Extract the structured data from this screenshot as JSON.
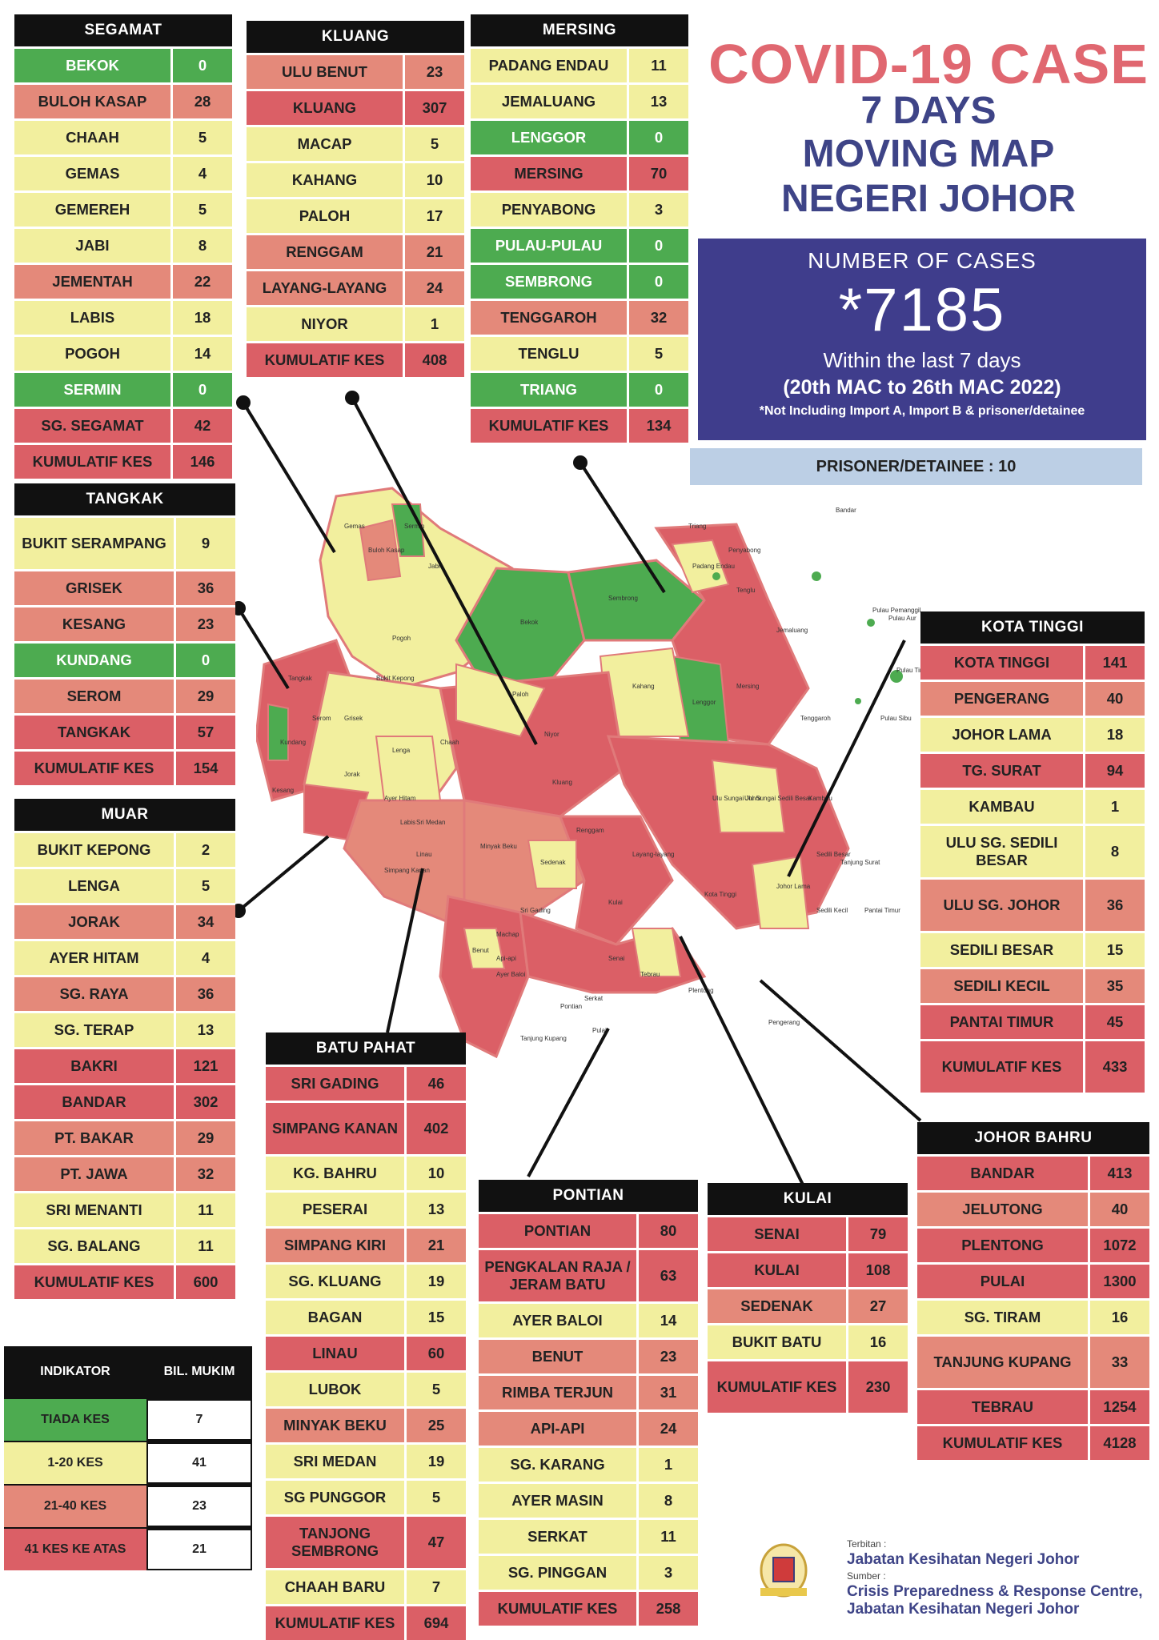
{
  "title": {
    "line1": "COVID-19 CASE",
    "line2": "7 DAYS",
    "line3": "MOVING MAP",
    "line4": "NEGERI JOHOR"
  },
  "summary": {
    "label": "NUMBER OF CASES",
    "total": "*7185",
    "period": "Within the last 7 days",
    "range": "(20th MAC to 26th MAC 2022)",
    "note": "*Not Including Import A, Import B & prisoner/detainee"
  },
  "prisoner": "PRISONER/DETAINEE : 10",
  "colors": {
    "tiada": "#4dab50",
    "low": "#f2ef9e",
    "mid": "#e4897a",
    "high": "#db5f66"
  },
  "districts": [
    {
      "id": "segamat",
      "name": "SEGAMAT",
      "rows": [
        {
          "n": "BEKOK",
          "v": "0",
          "c": 0
        },
        {
          "n": "BULOH KASAP",
          "v": "28",
          "c": 2
        },
        {
          "n": "CHAAH",
          "v": "5",
          "c": 1
        },
        {
          "n": "GEMAS",
          "v": "4",
          "c": 1
        },
        {
          "n": "GEMEREH",
          "v": "5",
          "c": 1
        },
        {
          "n": "JABI",
          "v": "8",
          "c": 1
        },
        {
          "n": "JEMENTAH",
          "v": "22",
          "c": 2
        },
        {
          "n": "LABIS",
          "v": "18",
          "c": 1
        },
        {
          "n": "POGOH",
          "v": "14",
          "c": 1
        },
        {
          "n": "SERMIN",
          "v": "0",
          "c": 0
        },
        {
          "n": "SG. SEGAMAT",
          "v": "42",
          "c": 3
        },
        {
          "n": "KUMULATIF KES",
          "v": "146",
          "c": 3
        }
      ]
    },
    {
      "id": "kluang",
      "name": "KLUANG",
      "rows": [
        {
          "n": "ULU BENUT",
          "v": "23",
          "c": 2
        },
        {
          "n": "KLUANG",
          "v": "307",
          "c": 3
        },
        {
          "n": "MACAP",
          "v": "5",
          "c": 1
        },
        {
          "n": "KAHANG",
          "v": "10",
          "c": 1
        },
        {
          "n": "PALOH",
          "v": "17",
          "c": 1
        },
        {
          "n": "RENGGAM",
          "v": "21",
          "c": 2
        },
        {
          "n": "LAYANG-LAYANG",
          "v": "24",
          "c": 2
        },
        {
          "n": "NIYOR",
          "v": "1",
          "c": 1
        },
        {
          "n": "KUMULATIF KES",
          "v": "408",
          "c": 3
        }
      ]
    },
    {
      "id": "mersing",
      "name": "MERSING",
      "rows": [
        {
          "n": "PADANG ENDAU",
          "v": "11",
          "c": 1
        },
        {
          "n": "JEMALUANG",
          "v": "13",
          "c": 1
        },
        {
          "n": "LENGGOR",
          "v": "0",
          "c": 0
        },
        {
          "n": "MERSING",
          "v": "70",
          "c": 3
        },
        {
          "n": "PENYABONG",
          "v": "3",
          "c": 1
        },
        {
          "n": "PULAU-PULAU",
          "v": "0",
          "c": 0
        },
        {
          "n": "SEMBRONG",
          "v": "0",
          "c": 0
        },
        {
          "n": "TENGGAROH",
          "v": "32",
          "c": 2
        },
        {
          "n": "TENGLU",
          "v": "5",
          "c": 1
        },
        {
          "n": "TRIANG",
          "v": "0",
          "c": 0
        },
        {
          "n": "KUMULATIF KES",
          "v": "134",
          "c": 3
        }
      ]
    },
    {
      "id": "tangkak",
      "name": "TANGKAK",
      "rows": [
        {
          "n": "BUKIT SERAMPANG",
          "v": "9",
          "c": 1,
          "tall": true
        },
        {
          "n": "GRISEK",
          "v": "36",
          "c": 2
        },
        {
          "n": "KESANG",
          "v": "23",
          "c": 2
        },
        {
          "n": "KUNDANG",
          "v": "0",
          "c": 0
        },
        {
          "n": "SEROM",
          "v": "29",
          "c": 2
        },
        {
          "n": "TANGKAK",
          "v": "57",
          "c": 3
        },
        {
          "n": "KUMULATIF KES",
          "v": "154",
          "c": 3
        }
      ]
    },
    {
      "id": "muar",
      "name": "MUAR",
      "rows": [
        {
          "n": "BUKIT KEPONG",
          "v": "2",
          "c": 1
        },
        {
          "n": "LENGA",
          "v": "5",
          "c": 1
        },
        {
          "n": "JORAK",
          "v": "34",
          "c": 2
        },
        {
          "n": "AYER HITAM",
          "v": "4",
          "c": 1
        },
        {
          "n": "SG. RAYA",
          "v": "36",
          "c": 2
        },
        {
          "n": "SG. TERAP",
          "v": "13",
          "c": 1
        },
        {
          "n": "BAKRI",
          "v": "121",
          "c": 3
        },
        {
          "n": "BANDAR",
          "v": "302",
          "c": 3
        },
        {
          "n": "PT. BAKAR",
          "v": "29",
          "c": 2
        },
        {
          "n": "PT. JAWA",
          "v": "32",
          "c": 2
        },
        {
          "n": "SRI MENANTI",
          "v": "11",
          "c": 1
        },
        {
          "n": "SG. BALANG",
          "v": "11",
          "c": 1
        },
        {
          "n": "KUMULATIF KES",
          "v": "600",
          "c": 3
        }
      ]
    },
    {
      "id": "batupahat",
      "name": "BATU PAHAT",
      "rows": [
        {
          "n": "SRI GADING",
          "v": "46",
          "c": 3
        },
        {
          "n": "SIMPANG KANAN",
          "v": "402",
          "c": 3,
          "tall": true
        },
        {
          "n": "KG. BAHRU",
          "v": "10",
          "c": 1
        },
        {
          "n": "PESERAI",
          "v": "13",
          "c": 1
        },
        {
          "n": "SIMPANG KIRI",
          "v": "21",
          "c": 2
        },
        {
          "n": "SG. KLUANG",
          "v": "19",
          "c": 1
        },
        {
          "n": "BAGAN",
          "v": "15",
          "c": 1
        },
        {
          "n": "LINAU",
          "v": "60",
          "c": 3
        },
        {
          "n": "LUBOK",
          "v": "5",
          "c": 1
        },
        {
          "n": "MINYAK BEKU",
          "v": "25",
          "c": 2
        },
        {
          "n": "SRI MEDAN",
          "v": "19",
          "c": 1
        },
        {
          "n": "SG PUNGGOR",
          "v": "5",
          "c": 1
        },
        {
          "n": "TANJONG SEMBRONG",
          "v": "47",
          "c": 3,
          "tall": true
        },
        {
          "n": "CHAAH BARU",
          "v": "7",
          "c": 1
        },
        {
          "n": "KUMULATIF KES",
          "v": "694",
          "c": 3
        }
      ]
    },
    {
      "id": "pontian",
      "name": "PONTIAN",
      "rows": [
        {
          "n": "PONTIAN",
          "v": "80",
          "c": 3
        },
        {
          "n": "PENGKALAN RAJA / JERAM BATU",
          "v": "63",
          "c": 3,
          "tall": true
        },
        {
          "n": "AYER BALOI",
          "v": "14",
          "c": 1
        },
        {
          "n": "BENUT",
          "v": "23",
          "c": 2
        },
        {
          "n": "RIMBA TERJUN",
          "v": "31",
          "c": 2
        },
        {
          "n": "API-API",
          "v": "24",
          "c": 2
        },
        {
          "n": "SG. KARANG",
          "v": "1",
          "c": 1
        },
        {
          "n": "AYER MASIN",
          "v": "8",
          "c": 1
        },
        {
          "n": "SERKAT",
          "v": "11",
          "c": 1
        },
        {
          "n": "SG. PINGGAN",
          "v": "3",
          "c": 1
        },
        {
          "n": "KUMULATIF KES",
          "v": "258",
          "c": 3
        }
      ]
    },
    {
      "id": "kulai",
      "name": "KULAI",
      "rows": [
        {
          "n": "SENAI",
          "v": "79",
          "c": 3
        },
        {
          "n": "KULAI",
          "v": "108",
          "c": 3
        },
        {
          "n": "SEDENAK",
          "v": "27",
          "c": 2
        },
        {
          "n": "BUKIT BATU",
          "v": "16",
          "c": 1
        },
        {
          "n": "KUMULATIF KES",
          "v": "230",
          "c": 3,
          "tall": true
        }
      ]
    },
    {
      "id": "kotatinggi",
      "name": "KOTA TINGGI",
      "rows": [
        {
          "n": "KOTA TINGGI",
          "v": "141",
          "c": 3
        },
        {
          "n": "PENGERANG",
          "v": "40",
          "c": 2
        },
        {
          "n": "JOHOR LAMA",
          "v": "18",
          "c": 1
        },
        {
          "n": "TG. SURAT",
          "v": "94",
          "c": 3
        },
        {
          "n": "KAMBAU",
          "v": "1",
          "c": 1
        },
        {
          "n": "ULU SG. SEDILI BESAR",
          "v": "8",
          "c": 1,
          "tall": true
        },
        {
          "n": "ULU  SG. JOHOR",
          "v": "36",
          "c": 2,
          "tall": true
        },
        {
          "n": "SEDILI BESAR",
          "v": "15",
          "c": 1
        },
        {
          "n": "SEDILI KECIL",
          "v": "35",
          "c": 2
        },
        {
          "n": "PANTAI TIMUR",
          "v": "45",
          "c": 3
        },
        {
          "n": "KUMULATIF KES",
          "v": "433",
          "c": 3,
          "tall": true
        }
      ]
    },
    {
      "id": "johorbahru",
      "name": "JOHOR BAHRU",
      "rows": [
        {
          "n": "BANDAR",
          "v": "413",
          "c": 3
        },
        {
          "n": "JELUTONG",
          "v": "40",
          "c": 2
        },
        {
          "n": "PLENTONG",
          "v": "1072",
          "c": 3
        },
        {
          "n": "PULAI",
          "v": "1300",
          "c": 3
        },
        {
          "n": "SG. TIRAM",
          "v": "16",
          "c": 1
        },
        {
          "n": "TANJUNG KUPANG",
          "v": "33",
          "c": 2,
          "tall": true
        },
        {
          "n": "TEBRAU",
          "v": "1254",
          "c": 3
        },
        {
          "n": "KUMULATIF KES",
          "v": "4128",
          "c": 3
        }
      ]
    }
  ],
  "indicator": {
    "h1": "INDIKATOR",
    "h2": "BIL. MUKIM",
    "rows": [
      {
        "label": "TIADA KES",
        "count": "7",
        "c": 0
      },
      {
        "label": "1-20 KES",
        "count": "41",
        "c": 1
      },
      {
        "label": "21-40 KES",
        "count": "23",
        "c": 2
      },
      {
        "label": "41 KES KE ATAS",
        "count": "21",
        "c": 3
      }
    ]
  },
  "credits": {
    "published_label": "Terbitan :",
    "publisher": "Jabatan Kesihatan Negeri Johor",
    "source_label": "Sumber :",
    "source1": "Crisis Preparedness & Response Centre,",
    "source2": "Jabatan Kesihatan Negeri Johor"
  },
  "map_labels": [
    "Gemas",
    "Buloh Kasap",
    "Sermin",
    "Jabi",
    "Bekok",
    "Sembrong",
    "Triang",
    "Penyabong",
    "Padang Endau",
    "Tenglu",
    "Jemaluang",
    "Lenggor",
    "Mersing",
    "Tenggaroh",
    "Kahang",
    "Paloh",
    "Niyor",
    "Kluang",
    "Renggam",
    "Layang-layang",
    "Sedenak",
    "Kulai",
    "Senai",
    "Tebrau",
    "Plentong",
    "Pengerang",
    "Kota Tinggi",
    "Johor Lama",
    "Sedili Kecil",
    "Sedili Besar",
    "Tanjung Surat",
    "Pantai Timur",
    "Ulu Sungai Johor",
    "Ulu Sungai Sedili Besar",
    "Kambau",
    "Pulau Tinggi",
    "Pulau Sibu",
    "Pulau Aur",
    "Pulau Pemanggil",
    "Tangkak",
    "Serom",
    "Kesang",
    "Kundang",
    "Grisek",
    "Jorak",
    "Lenga",
    "Bukit Kepong",
    "Pogoh",
    "Chaah",
    "Labis",
    "Ayer Hitam",
    "Sri Medan",
    "Linau",
    "Simpang Kanan",
    "Minyak Beku",
    "Sri Gading",
    "Machap",
    "Benut",
    "Ayer Baloi",
    "Api-api",
    "Pontian",
    "Pulai",
    "Tanjung Kupang",
    "Serkat",
    "Bandar"
  ]
}
